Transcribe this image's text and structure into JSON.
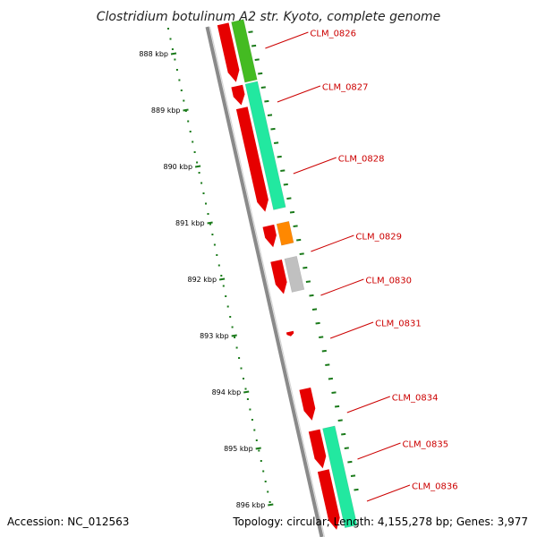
{
  "title": "Clostridium botulinum A2 str. Kyoto, complete genome",
  "footer": {
    "accession": "Accession: NC_012563",
    "summary": "Topology: circular; Length: 4,155,278 bp; Genes: 3,977"
  },
  "colors": {
    "backbone": "#8a8a8a",
    "tick": "#1a7a1a",
    "gene_label": "#cc0000",
    "cds_red": "#e60000",
    "green": "#44bb22",
    "teal": "#22e8a0",
    "orange": "#ff8800",
    "gray": "#c0c0c0"
  },
  "scale": {
    "unit": "kbp",
    "ticks": [
      {
        "kbp": 888,
        "label": "888 kbp"
      },
      {
        "kbp": 889,
        "label": "889 kbp"
      },
      {
        "kbp": 890,
        "label": "890 kbp"
      },
      {
        "kbp": 891,
        "label": "891 kbp"
      },
      {
        "kbp": 892,
        "label": "892 kbp"
      },
      {
        "kbp": 893,
        "label": "893 kbp"
      },
      {
        "kbp": 894,
        "label": "894 kbp"
      },
      {
        "kbp": 895,
        "label": "895 kbp"
      },
      {
        "kbp": 896,
        "label": "896 kbp"
      }
    ]
  },
  "genes": [
    {
      "label": "CLM_0826",
      "start": 887.53,
      "end": 888.6,
      "color": "green",
      "cds_start": 887.53,
      "cds_end": 888.56
    },
    {
      "label": "CLM_0827",
      "start": 888.63,
      "end": 890.86,
      "color": "teal",
      "cds_start": 888.63,
      "cds_end": 888.97
    },
    {
      "label": "CLM_0828",
      "start": 888.63,
      "end": 890.86,
      "color": "teal",
      "cds_start": 889.02,
      "cds_end": 890.86
    },
    {
      "label": "CLM_0829",
      "start": 891.11,
      "end": 891.49,
      "color": "orange",
      "cds_start": 891.11,
      "cds_end": 891.49
    },
    {
      "label": "CLM_0830",
      "start": 891.73,
      "end": 892.32,
      "color": "gray",
      "cds_start": 891.73,
      "cds_end": 892.32
    },
    {
      "label": "CLM_0831",
      "start": 892.98,
      "end": 893.06,
      "color": "none",
      "cds_start": 892.98,
      "cds_end": 893.06
    },
    {
      "label": "CLM_0834",
      "start": 894.0,
      "end": 894.56,
      "color": "none",
      "cds_start": 894.0,
      "cds_end": 894.56
    },
    {
      "label": "CLM_0835",
      "start": 894.74,
      "end": 896.5,
      "color": "teal",
      "cds_start": 894.74,
      "cds_end": 895.41
    },
    {
      "label": "CLM_0836",
      "start": 894.74,
      "end": 896.5,
      "color": "teal",
      "cds_start": 895.45,
      "cds_end": 896.5
    }
  ]
}
